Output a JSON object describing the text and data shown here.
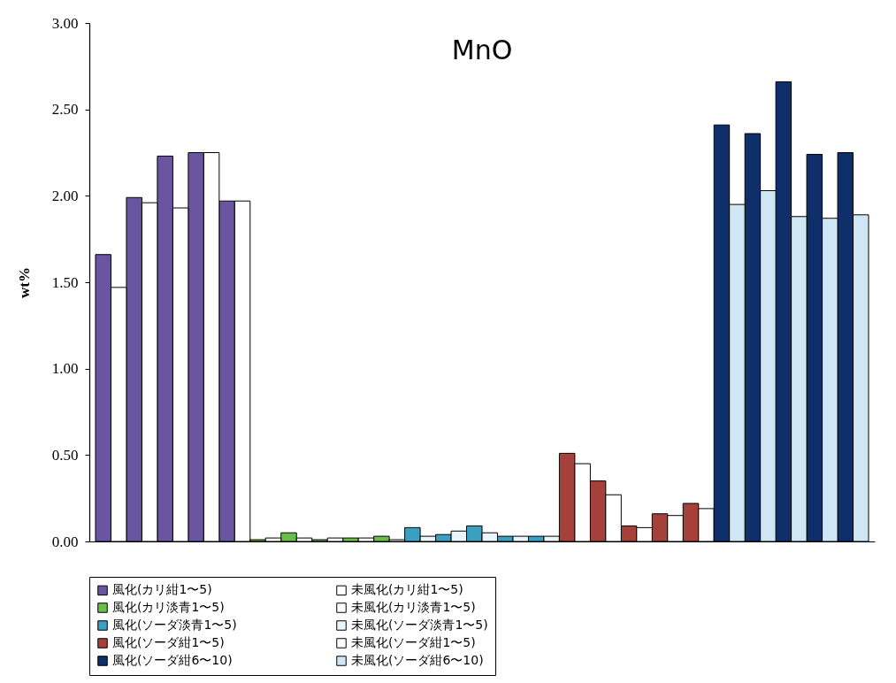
{
  "chart_data": {
    "type": "bar",
    "title": "MnO",
    "ylabel": "wt%",
    "categories": [
      null,
      null,
      null,
      null,
      null,
      null,
      null,
      null,
      null,
      null,
      null,
      null,
      null,
      null,
      null,
      null,
      null,
      null,
      null,
      null,
      null,
      null,
      null,
      null,
      null,
      null,
      null,
      null,
      null,
      null,
      null,
      null,
      null,
      null,
      null,
      null,
      null,
      null,
      null,
      null,
      null,
      null,
      null,
      null,
      null,
      null,
      null,
      null,
      null,
      null
    ],
    "series": [
      {
        "name": "風化(カリ紺1〜5)",
        "color": "#6a56a0",
        "values": [
          1.66,
          null,
          1.99,
          null,
          2.23,
          null,
          2.25,
          null,
          1.97,
          null,
          null,
          null,
          null,
          null,
          null,
          null,
          null,
          null,
          null,
          null,
          null,
          null,
          null,
          null,
          null,
          null,
          null,
          null,
          null,
          null,
          null,
          null,
          null,
          null,
          null,
          null,
          null,
          null,
          null,
          null,
          null,
          null,
          null,
          null,
          null,
          null,
          null,
          null,
          null,
          null
        ]
      },
      {
        "name": "未風化(カリ紺1〜5)",
        "color": "#ffffff",
        "values": [
          null,
          1.47,
          null,
          1.96,
          null,
          1.93,
          null,
          2.25,
          null,
          1.97,
          null,
          null,
          null,
          null,
          null,
          null,
          null,
          null,
          null,
          null,
          null,
          null,
          null,
          null,
          null,
          null,
          null,
          null,
          null,
          null,
          null,
          null,
          null,
          null,
          null,
          null,
          null,
          null,
          null,
          null,
          null,
          null,
          null,
          null,
          null,
          null,
          null,
          null,
          null,
          null
        ]
      },
      {
        "name": "風化(カリ淡青1〜5)",
        "color": "#6abf4b",
        "values": [
          null,
          null,
          null,
          null,
          null,
          null,
          null,
          null,
          null,
          null,
          0.01,
          null,
          0.05,
          null,
          0.01,
          null,
          0.02,
          null,
          0.03,
          null,
          null,
          null,
          null,
          null,
          null,
          null,
          null,
          null,
          null,
          null,
          null,
          null,
          null,
          null,
          null,
          null,
          null,
          null,
          null,
          null,
          null,
          null,
          null,
          null,
          null,
          null,
          null,
          null,
          null,
          null
        ]
      },
      {
        "name": "未風化(カリ淡青1〜5)",
        "color": "#ffffff",
        "values": [
          null,
          null,
          null,
          null,
          null,
          null,
          null,
          null,
          null,
          null,
          null,
          0.02,
          null,
          0.02,
          null,
          0.02,
          null,
          0.02,
          null,
          0.01,
          null,
          null,
          null,
          null,
          null,
          null,
          null,
          null,
          null,
          null,
          null,
          null,
          null,
          null,
          null,
          null,
          null,
          null,
          null,
          null,
          null,
          null,
          null,
          null,
          null,
          null,
          null,
          null,
          null,
          null
        ]
      },
      {
        "name": "風化(ソーダ淡青1〜5)",
        "color": "#3aa0c0",
        "values": [
          null,
          null,
          null,
          null,
          null,
          null,
          null,
          null,
          null,
          null,
          null,
          null,
          null,
          null,
          null,
          null,
          null,
          null,
          null,
          null,
          0.08,
          null,
          0.04,
          null,
          0.09,
          null,
          0.03,
          null,
          0.03,
          null,
          null,
          null,
          null,
          null,
          null,
          null,
          null,
          null,
          null,
          null,
          null,
          null,
          null,
          null,
          null,
          null,
          null,
          null,
          null,
          null
        ]
      },
      {
        "name": "未風化(ソーダ淡青1〜5)",
        "color": "#eaf6fb",
        "values": [
          null,
          null,
          null,
          null,
          null,
          null,
          null,
          null,
          null,
          null,
          null,
          null,
          null,
          null,
          null,
          null,
          null,
          null,
          null,
          null,
          null,
          0.03,
          null,
          0.06,
          null,
          0.05,
          null,
          0.03,
          null,
          0.03,
          null,
          null,
          null,
          null,
          null,
          null,
          null,
          null,
          null,
          null,
          null,
          null,
          null,
          null,
          null,
          null,
          null,
          null,
          null,
          null
        ]
      },
      {
        "name": "風化(ソーダ紺1〜5)",
        "color": "#a6403a",
        "values": [
          null,
          null,
          null,
          null,
          null,
          null,
          null,
          null,
          null,
          null,
          null,
          null,
          null,
          null,
          null,
          null,
          null,
          null,
          null,
          null,
          null,
          null,
          null,
          null,
          null,
          null,
          null,
          null,
          null,
          null,
          0.51,
          null,
          0.35,
          null,
          0.09,
          null,
          0.16,
          null,
          0.22,
          null,
          null,
          null,
          null,
          null,
          null,
          null,
          null,
          null,
          null,
          null
        ]
      },
      {
        "name": "未風化(ソーダ紺1〜5)",
        "color": "#ffffff",
        "values": [
          null,
          null,
          null,
          null,
          null,
          null,
          null,
          null,
          null,
          null,
          null,
          null,
          null,
          null,
          null,
          null,
          null,
          null,
          null,
          null,
          null,
          null,
          null,
          null,
          null,
          null,
          null,
          null,
          null,
          null,
          null,
          0.45,
          null,
          0.27,
          null,
          0.08,
          null,
          0.15,
          null,
          0.19,
          null,
          null,
          null,
          null,
          null,
          null,
          null,
          null,
          null,
          null
        ]
      },
      {
        "name": "風化(ソーダ紺6〜10)",
        "color": "#0e2f6a",
        "values": [
          null,
          null,
          null,
          null,
          null,
          null,
          null,
          null,
          null,
          null,
          null,
          null,
          null,
          null,
          null,
          null,
          null,
          null,
          null,
          null,
          null,
          null,
          null,
          null,
          null,
          null,
          null,
          null,
          null,
          null,
          null,
          null,
          null,
          null,
          null,
          null,
          null,
          null,
          null,
          null,
          2.41,
          null,
          2.36,
          null,
          2.66,
          null,
          2.24,
          null,
          2.25,
          null
        ]
      },
      {
        "name": "未風化(ソーダ紺6〜10)",
        "color": "#cfe6f5",
        "values": [
          null,
          null,
          null,
          null,
          null,
          null,
          null,
          null,
          null,
          null,
          null,
          null,
          null,
          null,
          null,
          null,
          null,
          null,
          null,
          null,
          null,
          null,
          null,
          null,
          null,
          null,
          null,
          null,
          null,
          null,
          null,
          null,
          null,
          null,
          null,
          null,
          null,
          null,
          null,
          null,
          null,
          1.95,
          null,
          2.03,
          null,
          1.88,
          null,
          1.87,
          null,
          1.89
        ]
      }
    ],
    "ylim": [
      0,
      3
    ],
    "yticks": [
      {
        "value": 0,
        "label": "0.00"
      },
      {
        "value": 0.5,
        "label": "0.50"
      },
      {
        "value": 1,
        "label": "1.00"
      },
      {
        "value": 1.5,
        "label": "1.50"
      },
      {
        "value": 2,
        "label": "2.00"
      },
      {
        "value": 2.5,
        "label": "2.50"
      },
      {
        "value": 3,
        "label": "3.00"
      }
    ],
    "tick_labels": "y",
    "grid": false,
    "legend": "bottom"
  }
}
